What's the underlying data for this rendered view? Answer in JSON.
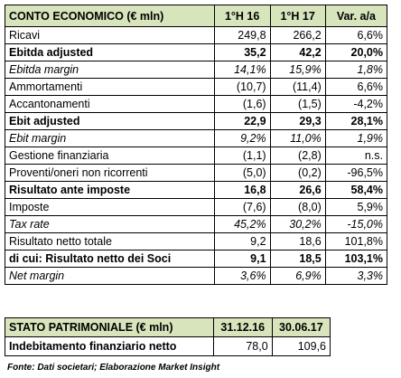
{
  "income_table": {
    "header": [
      "CONTO ECONOMICO (€ mln)",
      "1°H 16",
      "1°H 17",
      "Var. a/a"
    ],
    "rows": [
      [
        "Ricavi",
        "249,8",
        "266,2",
        "6,6%"
      ],
      [
        "Ebitda adjusted",
        "35,2",
        "42,2",
        "20,0%"
      ],
      [
        "Ebitda margin",
        "14,1%",
        "15,9%",
        "1,8%"
      ],
      [
        "Ammortamenti",
        "(10,7)",
        "(11,4)",
        "6,6%"
      ],
      [
        "Accantonamenti",
        "(1,6)",
        "(1,5)",
        "-4,2%"
      ],
      [
        "Ebit adjusted",
        "22,9",
        "29,3",
        "28,1%"
      ],
      [
        "Ebit margin",
        "9,2%",
        "11,0%",
        "1,9%"
      ],
      [
        "Gestione finanziaria",
        "(1,1)",
        "(2,8)",
        "n.s."
      ],
      [
        "Proventi/oneri non ricorrenti",
        "(5,0)",
        "(0,2)",
        "-96,5%"
      ],
      [
        "Risultato ante imposte",
        "16,8",
        "26,6",
        "58,4%"
      ],
      [
        "Imposte",
        "(7,6)",
        "(8,0)",
        "5,9%"
      ],
      [
        "Tax rate",
        "45,2%",
        "30,2%",
        "-15,0%"
      ],
      [
        "Risultato netto totale",
        "9,2",
        "18,6",
        "101,8%"
      ],
      [
        "di cui: Risultato netto dei Soci",
        "9,1",
        "18,5",
        "103,1%"
      ],
      [
        "Net margin",
        "3,6%",
        "6,9%",
        "3,3%"
      ]
    ]
  },
  "balance_table": {
    "header": [
      "STATO PATRIMONIALE (€ mln)",
      "31.12.16",
      "30.06.17"
    ],
    "rows": [
      [
        "Indebitamento finanziario netto",
        "78,0",
        "109,6"
      ]
    ]
  },
  "footnote": "Fonte: Dati societari; Elaborazione Market Insight"
}
